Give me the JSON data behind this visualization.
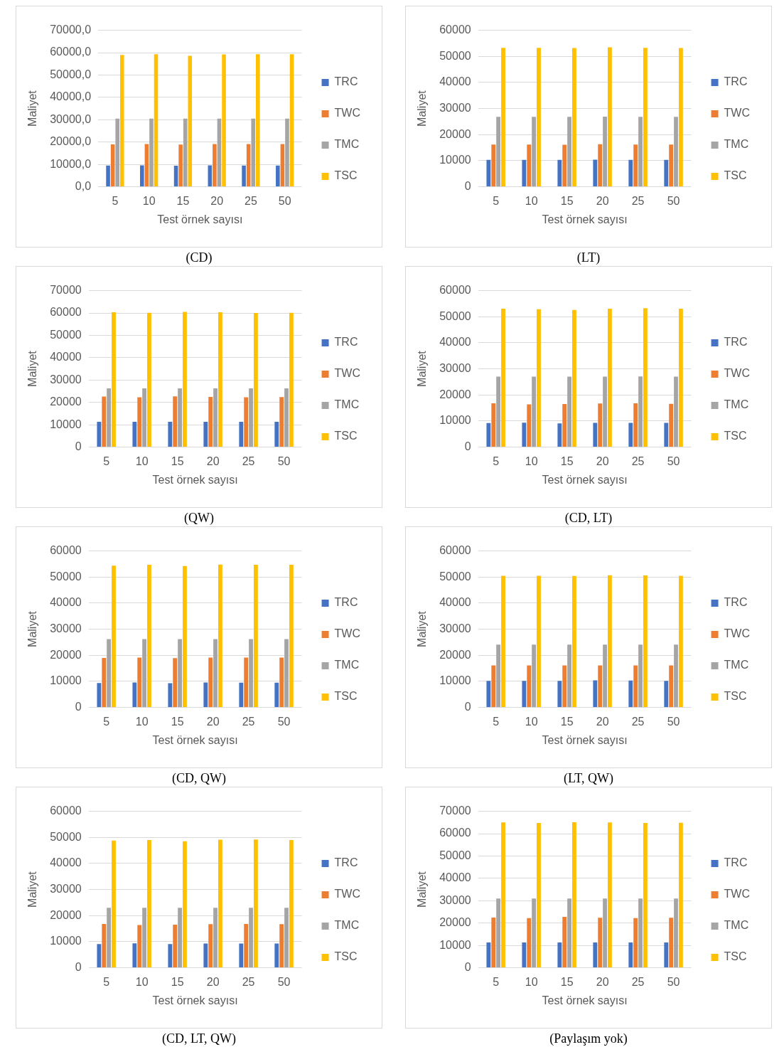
{
  "chart_data": [
    {
      "type": "bar",
      "ylabel": "Maliyet",
      "xlabel": "Test örnek sayısı",
      "annotations": [
        "(CD)"
      ],
      "legend": "right",
      "grid": "y",
      "categories": [
        "5",
        "10",
        "15",
        "20",
        "25",
        "50"
      ],
      "ylim": [
        0,
        70000
      ],
      "yticks": [
        {
          "value": 0,
          "label": "0,0"
        },
        {
          "value": 10000,
          "label": "10000,0"
        },
        {
          "value": 20000,
          "label": "20000,0"
        },
        {
          "value": 30000,
          "label": "30000,0"
        },
        {
          "value": 40000,
          "label": "40000,0"
        },
        {
          "value": 50000,
          "label": "50000,0"
        },
        {
          "value": 60000,
          "label": "60000,0"
        },
        {
          "value": 70000,
          "label": "70000,0"
        }
      ],
      "series": [
        {
          "name": "TRC",
          "color": "#4472c4",
          "values": [
            9500,
            9600,
            9400,
            9600,
            9500,
            9500
          ]
        },
        {
          "name": "TWC",
          "color": "#ed7d31",
          "values": [
            19000,
            19100,
            18900,
            19100,
            19100,
            19100
          ]
        },
        {
          "name": "TMC",
          "color": "#a5a5a5",
          "values": [
            30500,
            30500,
            30500,
            30500,
            30500,
            30500
          ]
        },
        {
          "name": "TSC",
          "color": "#ffc000",
          "values": [
            59000,
            59300,
            58600,
            59200,
            59300,
            59300
          ]
        }
      ]
    },
    {
      "type": "bar",
      "ylabel": "Maliyet",
      "xlabel": "Test örnek sayısı",
      "annotations": [
        "(LT)"
      ],
      "legend": "right",
      "grid": "y",
      "categories": [
        "5",
        "10",
        "15",
        "20",
        "25",
        "50"
      ],
      "ylim": [
        0,
        60000
      ],
      "yticks": [
        0,
        10000,
        20000,
        30000,
        40000,
        50000,
        60000
      ],
      "series": [
        {
          "name": "TRC",
          "color": "#4472c4",
          "values": [
            10300,
            10300,
            10300,
            10400,
            10300,
            10300
          ]
        },
        {
          "name": "TWC",
          "color": "#ed7d31",
          "values": [
            16200,
            16200,
            16100,
            16300,
            16200,
            16200
          ]
        },
        {
          "name": "TMC",
          "color": "#a5a5a5",
          "values": [
            26800,
            26800,
            26800,
            26900,
            26800,
            26800
          ]
        },
        {
          "name": "TSC",
          "color": "#ffc000",
          "values": [
            53300,
            53300,
            53200,
            53500,
            53300,
            53200
          ]
        }
      ]
    },
    {
      "type": "bar",
      "ylabel": "Maliyet",
      "xlabel": "Test örnek sayısı",
      "annotations": [
        "(QW)"
      ],
      "legend": "right",
      "grid": "y",
      "categories": [
        "5",
        "10",
        "15",
        "20",
        "25",
        "50"
      ],
      "ylim": [
        0,
        70000
      ],
      "yticks": [
        0,
        10000,
        20000,
        30000,
        40000,
        50000,
        60000,
        70000
      ],
      "series": [
        {
          "name": "TRC",
          "color": "#4472c4",
          "values": [
            11300,
            11300,
            11300,
            11300,
            11300,
            11300
          ]
        },
        {
          "name": "TWC",
          "color": "#ed7d31",
          "values": [
            22600,
            22300,
            22700,
            22500,
            22300,
            22400
          ]
        },
        {
          "name": "TMC",
          "color": "#a5a5a5",
          "values": [
            26300,
            26300,
            26300,
            26300,
            26300,
            26300
          ]
        },
        {
          "name": "TSC",
          "color": "#ffc000",
          "values": [
            60300,
            60100,
            60500,
            60300,
            60000,
            60100
          ]
        }
      ]
    },
    {
      "type": "bar",
      "ylabel": "Maliyet",
      "xlabel": "Test örnek sayısı",
      "annotations": [
        "(CD, LT)"
      ],
      "legend": "right",
      "grid": "y",
      "categories": [
        "5",
        "10",
        "15",
        "20",
        "25",
        "50"
      ],
      "ylim": [
        0,
        60000
      ],
      "yticks": [
        0,
        10000,
        20000,
        30000,
        40000,
        50000,
        60000
      ],
      "series": [
        {
          "name": "TRC",
          "color": "#4472c4",
          "values": [
            9200,
            9400,
            9100,
            9300,
            9300,
            9300
          ]
        },
        {
          "name": "TWC",
          "color": "#ed7d31",
          "values": [
            16800,
            16400,
            16500,
            16700,
            16800,
            16600
          ]
        },
        {
          "name": "TMC",
          "color": "#a5a5a5",
          "values": [
            27000,
            27000,
            27000,
            27000,
            27100,
            27000
          ]
        },
        {
          "name": "TSC",
          "color": "#ffc000",
          "values": [
            53100,
            52900,
            52600,
            53100,
            53300,
            53100
          ]
        }
      ]
    },
    {
      "type": "bar",
      "ylabel": "Maliyet",
      "xlabel": "Test örnek sayısı",
      "annotations": [
        "(CD, QW)"
      ],
      "legend": "right",
      "grid": "y",
      "categories": [
        "5",
        "10",
        "15",
        "20",
        "25",
        "50"
      ],
      "ylim": [
        0,
        60000
      ],
      "yticks": [
        0,
        10000,
        20000,
        30000,
        40000,
        50000,
        60000
      ],
      "series": [
        {
          "name": "TRC",
          "color": "#4472c4",
          "values": [
            9400,
            9600,
            9300,
            9600,
            9500,
            9500
          ]
        },
        {
          "name": "TWC",
          "color": "#ed7d31",
          "values": [
            19000,
            19100,
            18900,
            19100,
            19100,
            19100
          ]
        },
        {
          "name": "TMC",
          "color": "#a5a5a5",
          "values": [
            26200,
            26200,
            26200,
            26200,
            26200,
            26200
          ]
        },
        {
          "name": "TSC",
          "color": "#ffc000",
          "values": [
            54400,
            54700,
            54200,
            54800,
            54700,
            54700
          ]
        }
      ]
    },
    {
      "type": "bar",
      "ylabel": "Maliyet",
      "xlabel": "Test örnek sayısı",
      "annotations": [
        "(LT, QW)"
      ],
      "legend": "right",
      "grid": "y",
      "categories": [
        "5",
        "10",
        "15",
        "20",
        "25",
        "50"
      ],
      "ylim": [
        0,
        60000
      ],
      "yticks": [
        0,
        10000,
        20000,
        30000,
        40000,
        50000,
        60000
      ],
      "series": [
        {
          "name": "TRC",
          "color": "#4472c4",
          "values": [
            10200,
            10200,
            10200,
            10400,
            10300,
            10200
          ]
        },
        {
          "name": "TWC",
          "color": "#ed7d31",
          "values": [
            16100,
            16100,
            16100,
            16100,
            16100,
            16100
          ]
        },
        {
          "name": "TMC",
          "color": "#a5a5a5",
          "values": [
            24100,
            24100,
            24100,
            24100,
            24100,
            24100
          ]
        },
        {
          "name": "TSC",
          "color": "#ffc000",
          "values": [
            50500,
            50500,
            50400,
            50700,
            50600,
            50500
          ]
        }
      ]
    },
    {
      "type": "bar",
      "ylabel": "Maliyet",
      "xlabel": "Test örnek sayısı",
      "annotations": [
        "(CD, LT, QW)"
      ],
      "legend": "right",
      "grid": "y",
      "categories": [
        "5",
        "10",
        "15",
        "20",
        "25",
        "50"
      ],
      "ylim": [
        0,
        60000
      ],
      "yticks": [
        0,
        10000,
        20000,
        30000,
        40000,
        50000,
        60000
      ],
      "series": [
        {
          "name": "TRC",
          "color": "#4472c4",
          "values": [
            9100,
            9400,
            9100,
            9300,
            9300,
            9300
          ]
        },
        {
          "name": "TWC",
          "color": "#ed7d31",
          "values": [
            16800,
            16400,
            16500,
            16700,
            16800,
            16700
          ]
        },
        {
          "name": "TMC",
          "color": "#a5a5a5",
          "values": [
            23000,
            23000,
            23000,
            23000,
            23000,
            23000
          ]
        },
        {
          "name": "TSC",
          "color": "#ffc000",
          "values": [
            48800,
            49000,
            48500,
            49100,
            49200,
            49000
          ]
        }
      ]
    },
    {
      "type": "bar",
      "ylabel": "Maliyet",
      "xlabel": "Test örnek sayısı",
      "annotations": [
        "(Paylaşım yok)"
      ],
      "legend": "right",
      "grid": "y",
      "categories": [
        "5",
        "10",
        "15",
        "20",
        "25",
        "50"
      ],
      "ylim": [
        0,
        70000
      ],
      "yticks": [
        0,
        10000,
        20000,
        30000,
        40000,
        50000,
        60000,
        70000
      ],
      "series": [
        {
          "name": "TRC",
          "color": "#4472c4",
          "values": [
            11300,
            11300,
            11300,
            11300,
            11300,
            11300
          ]
        },
        {
          "name": "TWC",
          "color": "#ed7d31",
          "values": [
            22500,
            22200,
            22800,
            22400,
            22200,
            22400
          ]
        },
        {
          "name": "TMC",
          "color": "#a5a5a5",
          "values": [
            31000,
            31000,
            31000,
            31000,
            31000,
            31000
          ]
        },
        {
          "name": "TSC",
          "color": "#ffc000",
          "values": [
            65000,
            64800,
            65100,
            65000,
            64800,
            64900
          ]
        }
      ]
    }
  ]
}
